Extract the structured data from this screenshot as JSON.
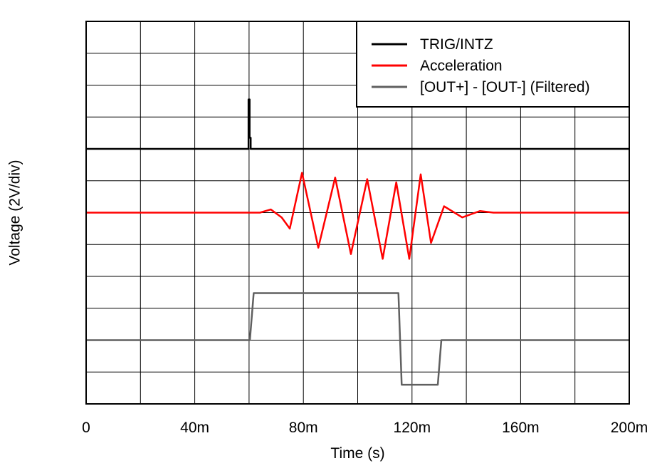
{
  "chart_data": {
    "type": "line",
    "title": "",
    "xlabel": "Time (s)",
    "ylabel": "Voltage (2V/div)",
    "xlim": [
      0,
      0.2
    ],
    "ylim": [
      -16,
      8
    ],
    "x_ticks": [
      0,
      0.04,
      0.08,
      0.12,
      0.16,
      0.2
    ],
    "x_tick_labels": [
      "0",
      "40m",
      "80m",
      "120m",
      "160m",
      "200m"
    ],
    "x_grid_divisions": 10,
    "y_grid_divisions": 12,
    "y_tick_labels_shown": false,
    "grid": true,
    "legend": {
      "placement": "top-right",
      "entries": [
        "TRIG/INTZ",
        "Acceleration",
        "[OUT+] - [OUT-] (Filtered)"
      ]
    },
    "series": [
      {
        "name": "TRIG/INTZ",
        "color": "#000000",
        "x": [
          0,
          0.0598,
          0.0598,
          0.0602,
          0.0602,
          0.0606,
          0.0606,
          0.2
        ],
        "y": [
          0,
          0,
          3.1,
          3.1,
          0.7,
          0.7,
          0,
          0
        ]
      },
      {
        "name": "Acceleration",
        "color": "#ff0000",
        "x": [
          0,
          0.06,
          0.064,
          0.068,
          0.072,
          0.075,
          0.0795,
          0.0855,
          0.0917,
          0.0975,
          0.1035,
          0.1092,
          0.1142,
          0.119,
          0.1232,
          0.127,
          0.1318,
          0.1385,
          0.145,
          0.15,
          0.2
        ],
        "y": [
          -4,
          -4,
          -4,
          -3.8,
          -4.3,
          -5.0,
          -1.5,
          -6.2,
          -1.8,
          -6.6,
          -1.9,
          -6.9,
          -2.1,
          -6.9,
          -1.6,
          -5.9,
          -3.6,
          -4.3,
          -3.9,
          -4,
          -4
        ]
      },
      {
        "name": "[OUT+] - [OUT-] (Filtered)",
        "color": "#606060",
        "x": [
          0,
          0.0603,
          0.0617,
          0.115,
          0.1162,
          0.1295,
          0.1308,
          0.2
        ],
        "y": [
          -12,
          -12,
          -9.05,
          -9.05,
          -14.8,
          -14.8,
          -12,
          -12
        ]
      }
    ]
  }
}
